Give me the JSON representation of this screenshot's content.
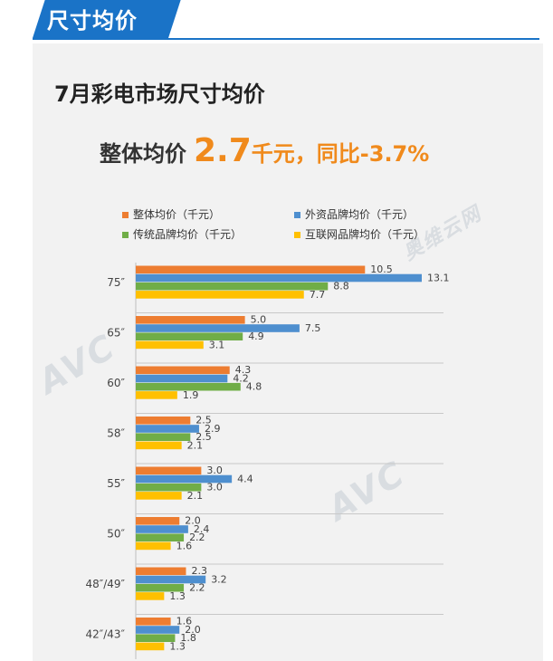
{
  "header": {
    "title": "尺寸均价"
  },
  "subtitle": "7月彩电市场尺寸均价",
  "summary": {
    "label": "整体均价",
    "value": "2.7",
    "unit": "千元，",
    "yoy": "同比-3.7%"
  },
  "watermark": {
    "text": "AVC",
    "text2": "奥维云网"
  },
  "colors": {
    "header": "#1a73c7",
    "accent": "#f08a1c"
  },
  "chart_data": {
    "type": "bar",
    "orientation": "horizontal",
    "categories": [
      "75″",
      "65″",
      "60″",
      "58″",
      "55″",
      "50″",
      "48″/49″",
      "42″/43″"
    ],
    "series": [
      {
        "name": "整体均价（千元）",
        "color": "#ed7d31",
        "values": [
          10.5,
          5.0,
          4.3,
          2.5,
          3.0,
          2.0,
          2.3,
          1.6
        ]
      },
      {
        "name": "外资品牌均价（千元）",
        "color": "#4e8fcf",
        "values": [
          13.1,
          7.5,
          4.2,
          2.9,
          4.4,
          2.4,
          3.2,
          2.0
        ]
      },
      {
        "name": "传统品牌均价（千元）",
        "color": "#70ad47",
        "values": [
          8.8,
          4.9,
          4.8,
          2.5,
          3.0,
          2.2,
          2.2,
          1.8
        ]
      },
      {
        "name": "互联网品牌均价（千元）",
        "color": "#ffc000",
        "values": [
          7.7,
          3.1,
          1.9,
          2.1,
          2.1,
          1.6,
          1.3,
          1.3
        ]
      }
    ],
    "legend_position": "top",
    "grid": false
  }
}
